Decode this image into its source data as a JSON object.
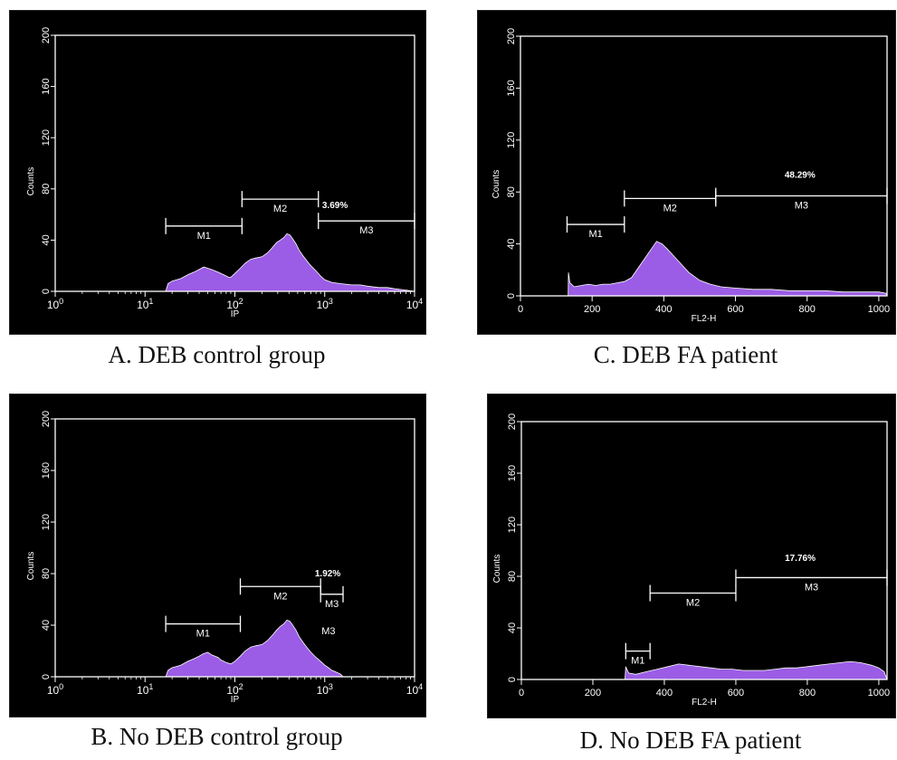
{
  "panels": [
    {
      "id": "A",
      "caption": "A. DEB control group",
      "chart_data": {
        "type": "area",
        "x_scale": "log",
        "xlim": [
          1,
          10000
        ],
        "ylim": [
          0,
          200
        ],
        "xlabel": "IP",
        "ylabel": "Counts",
        "x_ticks": [
          {
            "value": 1,
            "base": "10",
            "exp": "0"
          },
          {
            "value": 10,
            "base": "10",
            "exp": "1"
          },
          {
            "value": 100,
            "base": "10",
            "exp": "2"
          },
          {
            "value": 1000,
            "base": "10",
            "exp": "3"
          },
          {
            "value": 10000,
            "base": "10",
            "exp": "4"
          }
        ],
        "y_ticks": [
          "0",
          "40",
          "80",
          "120",
          "160",
          "200"
        ],
        "fill_color": "#9b5de5",
        "histogram": [
          [
            17,
            0
          ],
          [
            18,
            6
          ],
          [
            20,
            8
          ],
          [
            25,
            10
          ],
          [
            30,
            13
          ],
          [
            35,
            15
          ],
          [
            40,
            17
          ],
          [
            45,
            19
          ],
          [
            50,
            18
          ],
          [
            55,
            17
          ],
          [
            60,
            16
          ],
          [
            65,
            15
          ],
          [
            70,
            14
          ],
          [
            75,
            13
          ],
          [
            80,
            12
          ],
          [
            85,
            11
          ],
          [
            90,
            11
          ],
          [
            100,
            14
          ],
          [
            115,
            18
          ],
          [
            130,
            22
          ],
          [
            150,
            25
          ],
          [
            170,
            26
          ],
          [
            200,
            27
          ],
          [
            230,
            30
          ],
          [
            260,
            34
          ],
          [
            290,
            38
          ],
          [
            320,
            40
          ],
          [
            350,
            42
          ],
          [
            380,
            45
          ],
          [
            410,
            44
          ],
          [
            440,
            41
          ],
          [
            480,
            37
          ],
          [
            520,
            32
          ],
          [
            570,
            28
          ],
          [
            630,
            24
          ],
          [
            700,
            20
          ],
          [
            800,
            16
          ],
          [
            900,
            12
          ],
          [
            1000,
            9
          ],
          [
            1200,
            7
          ],
          [
            1500,
            6
          ],
          [
            2000,
            5
          ],
          [
            2500,
            5
          ],
          [
            3000,
            4
          ],
          [
            4000,
            3
          ],
          [
            5000,
            3
          ],
          [
            6000,
            2
          ],
          [
            8000,
            1
          ],
          [
            10000,
            0
          ]
        ],
        "markers": [
          {
            "label": "M1",
            "x1": 17,
            "x2": 120,
            "y": 51
          },
          {
            "label": "M2",
            "x1": 120,
            "x2": 850,
            "y": 72
          },
          {
            "label": "M3",
            "x1": 850,
            "x2": 10000,
            "y": 55
          }
        ],
        "annotations": [
          {
            "text": "3.69%",
            "x": 1300,
            "y": 65
          }
        ]
      }
    },
    {
      "id": "C",
      "caption": "C. DEB FA patient",
      "chart_data": {
        "type": "area",
        "x_scale": "linear",
        "xlim": [
          0,
          1023
        ],
        "ylim": [
          0,
          200
        ],
        "xlabel": "FL2-H",
        "ylabel": "Counts",
        "x_ticks": [
          {
            "value": 0,
            "label": "0"
          },
          {
            "value": 200,
            "label": "200"
          },
          {
            "value": 400,
            "label": "400"
          },
          {
            "value": 600,
            "label": "600"
          },
          {
            "value": 800,
            "label": "800"
          },
          {
            "value": 1000,
            "label": "1000"
          }
        ],
        "y_ticks": [
          "0",
          "40",
          "80",
          "120",
          "160",
          "200"
        ],
        "fill_color": "#9b5de5",
        "histogram": [
          [
            133,
            0
          ],
          [
            134,
            18
          ],
          [
            138,
            10
          ],
          [
            150,
            7
          ],
          [
            170,
            8
          ],
          [
            190,
            9
          ],
          [
            210,
            8
          ],
          [
            230,
            9
          ],
          [
            250,
            9
          ],
          [
            270,
            10
          ],
          [
            290,
            11
          ],
          [
            310,
            14
          ],
          [
            330,
            22
          ],
          [
            350,
            30
          ],
          [
            365,
            36
          ],
          [
            380,
            42
          ],
          [
            395,
            40
          ],
          [
            410,
            36
          ],
          [
            430,
            30
          ],
          [
            450,
            24
          ],
          [
            470,
            18
          ],
          [
            500,
            12
          ],
          [
            530,
            9
          ],
          [
            560,
            7
          ],
          [
            600,
            6
          ],
          [
            650,
            5
          ],
          [
            700,
            5
          ],
          [
            750,
            4
          ],
          [
            800,
            4
          ],
          [
            850,
            4
          ],
          [
            900,
            3
          ],
          [
            950,
            3
          ],
          [
            1000,
            3
          ],
          [
            1020,
            2
          ],
          [
            1023,
            0
          ]
        ],
        "markers": [
          {
            "label": "M1",
            "x1": 130,
            "x2": 290,
            "y": 55
          },
          {
            "label": "M2",
            "x1": 290,
            "x2": 545,
            "y": 75
          },
          {
            "label": "M3",
            "x1": 545,
            "x2": 1023,
            "y": 77
          }
        ],
        "annotations": [
          {
            "text": "48.29%",
            "x": 780,
            "y": 91
          }
        ]
      }
    },
    {
      "id": "B",
      "caption": "B. No DEB control group",
      "chart_data": {
        "type": "area",
        "x_scale": "log",
        "xlim": [
          1,
          10000
        ],
        "ylim": [
          0,
          200
        ],
        "xlabel": "IP",
        "ylabel": "Counts",
        "x_ticks": [
          {
            "value": 1,
            "base": "10",
            "exp": "0"
          },
          {
            "value": 10,
            "base": "10",
            "exp": "1"
          },
          {
            "value": 100,
            "base": "10",
            "exp": "2"
          },
          {
            "value": 1000,
            "base": "10",
            "exp": "3"
          },
          {
            "value": 10000,
            "base": "10",
            "exp": "4"
          }
        ],
        "y_ticks": [
          "0",
          "40",
          "80",
          "120",
          "160",
          "200"
        ],
        "fill_color": "#9b5de5",
        "histogram": [
          [
            17,
            0
          ],
          [
            18,
            5
          ],
          [
            20,
            7
          ],
          [
            25,
            9
          ],
          [
            30,
            12
          ],
          [
            35,
            14
          ],
          [
            40,
            16
          ],
          [
            45,
            18
          ],
          [
            50,
            19
          ],
          [
            55,
            17
          ],
          [
            60,
            16
          ],
          [
            65,
            15
          ],
          [
            70,
            13
          ],
          [
            75,
            12
          ],
          [
            80,
            11
          ],
          [
            90,
            10
          ],
          [
            100,
            12
          ],
          [
            115,
            16
          ],
          [
            130,
            20
          ],
          [
            150,
            23
          ],
          [
            170,
            24
          ],
          [
            200,
            25
          ],
          [
            230,
            28
          ],
          [
            260,
            32
          ],
          [
            290,
            36
          ],
          [
            320,
            39
          ],
          [
            350,
            41
          ],
          [
            380,
            44
          ],
          [
            410,
            43
          ],
          [
            440,
            40
          ],
          [
            480,
            36
          ],
          [
            520,
            31
          ],
          [
            570,
            27
          ],
          [
            630,
            23
          ],
          [
            700,
            19
          ],
          [
            800,
            15
          ],
          [
            900,
            12
          ],
          [
            1000,
            9
          ],
          [
            1100,
            7
          ],
          [
            1200,
            5
          ],
          [
            1300,
            4
          ],
          [
            1400,
            3
          ],
          [
            1500,
            2
          ],
          [
            1600,
            0
          ]
        ],
        "markers": [
          {
            "label": "M1",
            "x1": 17,
            "x2": 115,
            "y": 41
          },
          {
            "label": "M2",
            "x1": 115,
            "x2": 900,
            "y": 70
          },
          {
            "label": "M3",
            "x1": 900,
            "x2": 1600,
            "y": 64
          }
        ],
        "annotations": [
          {
            "text": "1.92%",
            "x": 1080,
            "y": 78
          },
          {
            "text": "M3",
            "x": 1100,
            "y": 33
          }
        ]
      }
    },
    {
      "id": "D",
      "caption": "D. No DEB FA patient",
      "chart_data": {
        "type": "area",
        "x_scale": "linear",
        "xlim": [
          0,
          1023
        ],
        "ylim": [
          0,
          200
        ],
        "xlabel": "FL2-H",
        "ylabel": "Counts",
        "x_ticks": [
          {
            "value": 0,
            "label": "0"
          },
          {
            "value": 200,
            "label": "200"
          },
          {
            "value": 400,
            "label": "400"
          },
          {
            "value": 600,
            "label": "600"
          },
          {
            "value": 800,
            "label": "800"
          },
          {
            "value": 1000,
            "label": "1000"
          }
        ],
        "y_ticks": [
          "0",
          "40",
          "80",
          "120",
          "160",
          "200"
        ],
        "fill_color": "#9b5de5",
        "histogram": [
          [
            290,
            0
          ],
          [
            292,
            10
          ],
          [
            300,
            5
          ],
          [
            320,
            4
          ],
          [
            350,
            6
          ],
          [
            380,
            8
          ],
          [
            410,
            10
          ],
          [
            440,
            12
          ],
          [
            470,
            11
          ],
          [
            500,
            10
          ],
          [
            530,
            9
          ],
          [
            560,
            8
          ],
          [
            590,
            8
          ],
          [
            620,
            7
          ],
          [
            650,
            7
          ],
          [
            680,
            7
          ],
          [
            710,
            8
          ],
          [
            740,
            9
          ],
          [
            770,
            9
          ],
          [
            800,
            10
          ],
          [
            830,
            11
          ],
          [
            860,
            12
          ],
          [
            890,
            13
          ],
          [
            920,
            14
          ],
          [
            950,
            13
          ],
          [
            980,
            11
          ],
          [
            1000,
            9
          ],
          [
            1015,
            6
          ],
          [
            1023,
            0
          ]
        ],
        "markers": [
          {
            "label": "M1",
            "x1": 292,
            "x2": 360,
            "y": 22
          },
          {
            "label": "M2",
            "x1": 360,
            "x2": 600,
            "y": 67
          },
          {
            "label": "M3",
            "x1": 600,
            "x2": 1023,
            "y": 79
          }
        ],
        "annotations": [
          {
            "text": "17.76%",
            "x": 780,
            "y": 92
          }
        ]
      }
    }
  ]
}
